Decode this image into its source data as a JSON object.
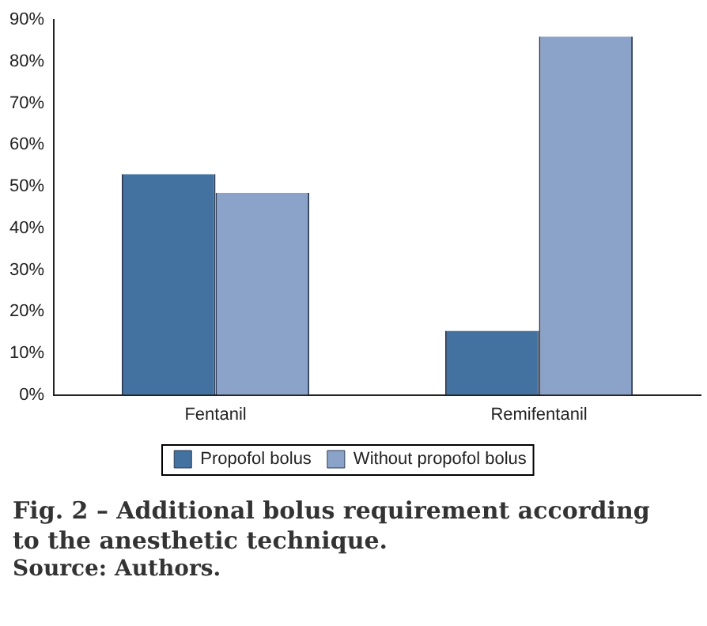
{
  "chart_data": {
    "type": "bar",
    "title": "Fig. 2 – Additional bolus requirement according to the anesthetic technique.",
    "annotations": [
      "Source: Authors."
    ],
    "categories": [
      "Fentanil",
      "Remifentanil"
    ],
    "series": [
      {
        "name": "Propofol bolus",
        "color": "#4472a0",
        "values": [
          53,
          15.4
        ]
      },
      {
        "name": "Without propofol bolus",
        "color": "#8ba3c9",
        "values": [
          48.5,
          86
        ]
      }
    ],
    "ylim": [
      0,
      90
    ],
    "yticks": [
      {
        "value": 0,
        "label": "0%"
      },
      {
        "value": 10,
        "label": "10%"
      },
      {
        "value": 20,
        "label": "20%"
      },
      {
        "value": 30,
        "label": "30%"
      },
      {
        "value": 40,
        "label": "40%"
      },
      {
        "value": 50,
        "label": "50%"
      },
      {
        "value": 60,
        "label": "60%"
      },
      {
        "value": 70,
        "label": "70%"
      },
      {
        "value": 80,
        "label": "80%"
      },
      {
        "value": 90,
        "label": "90%"
      }
    ],
    "grid": false,
    "legend": "bottom"
  }
}
